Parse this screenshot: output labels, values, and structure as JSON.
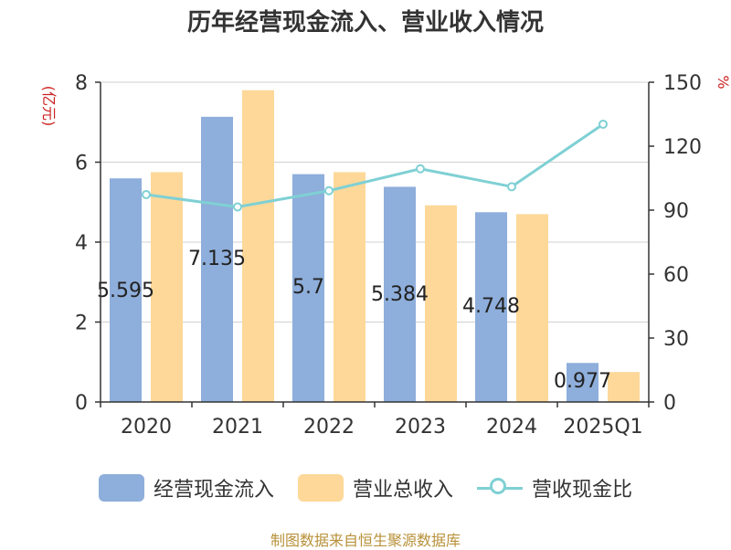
{
  "chart_data": {
    "type": "bar",
    "title": "历年经营现金流入、营业收入情况",
    "categories": [
      "2020",
      "2021",
      "2022",
      "2023",
      "2024",
      "2025Q1"
    ],
    "left_axis": {
      "unit": "(亿元)",
      "ylim": [
        0,
        8
      ],
      "ticks": [
        "0",
        "2",
        "4",
        "6",
        "8"
      ]
    },
    "right_axis": {
      "unit": "%",
      "ylim": [
        0,
        150
      ],
      "ticks": [
        "0",
        "30",
        "60",
        "90",
        "120",
        "150"
      ]
    },
    "series": [
      {
        "name": "经营现金流入",
        "type": "bar",
        "axis": "left",
        "color": "#8eaedb",
        "values": [
          5.595,
          7.135,
          5.7,
          5.384,
          4.748,
          0.977
        ],
        "labels": [
          "5.595",
          "7.135",
          "5.7",
          "5.384",
          "4.748",
          "0.977"
        ]
      },
      {
        "name": "营业总收入",
        "type": "bar",
        "axis": "left",
        "color": "#fdd899",
        "values": [
          5.75,
          7.8,
          5.75,
          4.92,
          4.7,
          0.75
        ]
      },
      {
        "name": "营收现金比",
        "type": "line",
        "axis": "right",
        "color": "#7fd0d4",
        "values": [
          97.3,
          91.5,
          99.1,
          109.4,
          101.0,
          130.3
        ]
      }
    ],
    "grid": true,
    "legend_position": "bottom"
  },
  "footer": "制图数据来自恒生聚源数据库"
}
